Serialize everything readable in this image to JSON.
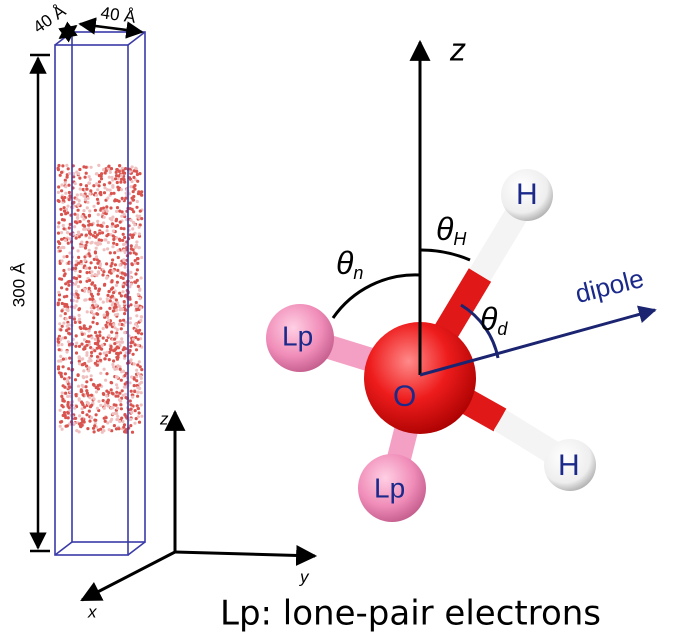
{
  "box": {
    "width_label": "40 Å",
    "depth_label": "40 Å",
    "height_label": "300 Å"
  },
  "small_axes": {
    "z": "z",
    "x": "x",
    "y": "y"
  },
  "molecule": {
    "z_axis": "z",
    "oxygen": "O",
    "hydrogen_upper": "H",
    "hydrogen_lower": "H",
    "lone_pair_upper": "Lp",
    "lone_pair_lower": "Lp",
    "dipole": "dipole",
    "theta_h": {
      "symbol": "θ",
      "subscript": "H"
    },
    "theta_n": {
      "symbol": "θ",
      "subscript": "n"
    },
    "theta_d": {
      "symbol": "θ",
      "subscript": "d"
    }
  },
  "caption": "Lp: lone-pair electrons"
}
